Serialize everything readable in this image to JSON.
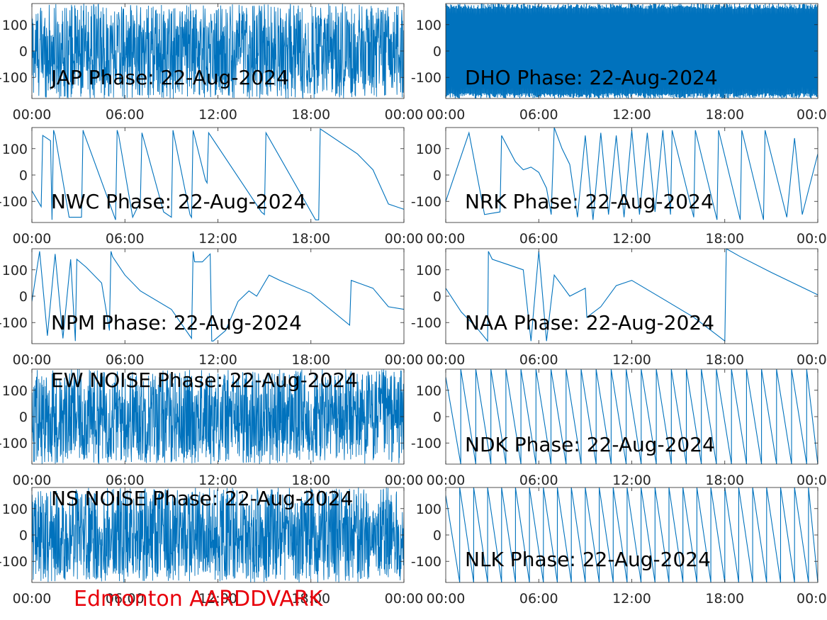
{
  "figure": {
    "footer_label": "Edmonton AARDDVARK",
    "footer_color": "#e8000b",
    "line_color": "#0072bd",
    "x_tick_labels": [
      "00:00",
      "06:00",
      "12:00",
      "18:00",
      "00:00"
    ],
    "y_tick_labels": [
      "100",
      "0",
      "-100"
    ]
  },
  "chart_data": [
    {
      "type": "line",
      "title": "JAP Phase: 22-Aug-2024",
      "pattern": "noise",
      "xlim": [
        0,
        24
      ],
      "ylim": [
        -180,
        180
      ],
      "yticks": [
        100,
        0,
        -100
      ],
      "xticks": [
        0,
        6,
        12,
        18,
        24
      ]
    },
    {
      "type": "line",
      "title": "DHO Phase: 22-Aug-2024",
      "pattern": "fast-wrap",
      "xlim": [
        0,
        24
      ],
      "ylim": [
        -180,
        180
      ],
      "yticks": [
        100,
        0,
        -100
      ],
      "xticks": [
        0,
        6,
        12,
        18,
        24
      ]
    },
    {
      "type": "line",
      "title": "NWC Phase: 22-Aug-2024",
      "pattern": "sawtooth",
      "xlim": [
        0,
        24
      ],
      "ylim": [
        -180,
        180
      ],
      "yticks": [
        100,
        0,
        -100
      ],
      "xticks": [
        0,
        6,
        12,
        18,
        24
      ],
      "x": [
        0,
        0.6,
        0.7,
        1.2,
        1.3,
        1.4,
        1.5,
        2.4,
        3.2,
        3.3,
        3.35,
        5.4,
        5.5,
        5.6,
        6.5,
        7,
        7.1,
        8.5,
        9,
        9.1,
        10.2,
        10.3,
        10.4,
        11.2,
        11.3,
        11.4,
        14.8,
        15,
        15.1,
        18.3,
        18.5,
        18.6,
        21,
        22,
        23,
        24
      ],
      "y": [
        -60,
        -120,
        150,
        130,
        -170,
        170,
        150,
        -160,
        -160,
        170,
        160,
        -170,
        170,
        150,
        -160,
        -100,
        160,
        -140,
        -160,
        170,
        -150,
        -160,
        170,
        -20,
        -30,
        160,
        -140,
        -150,
        160,
        -170,
        -170,
        175,
        80,
        20,
        -110,
        -130
      ]
    },
    {
      "type": "line",
      "title": "NRK Phase: 22-Aug-2024",
      "pattern": "mixed",
      "xlim": [
        0,
        24
      ],
      "ylim": [
        -180,
        180
      ],
      "yticks": [
        100,
        0,
        -100
      ],
      "xticks": [
        0,
        6,
        12,
        18,
        24
      ],
      "x": [
        0,
        1.5,
        2.5,
        3.5,
        3.6,
        4.5,
        5,
        5.5,
        6,
        6.5,
        6.8,
        7,
        7.5,
        8,
        8.5,
        9,
        9.5,
        10,
        10.5,
        11,
        11.5,
        12,
        12.5,
        13,
        13.5,
        14,
        14.5,
        14.6,
        16,
        16.1,
        17.5,
        17.6,
        19,
        19.1,
        20.5,
        20.6,
        22,
        22.5,
        23,
        24
      ],
      "y": [
        -100,
        160,
        -150,
        -140,
        150,
        50,
        20,
        30,
        10,
        -50,
        -150,
        180,
        100,
        40,
        -160,
        150,
        -170,
        160,
        -150,
        150,
        -160,
        170,
        -150,
        160,
        -140,
        170,
        -150,
        170,
        -160,
        170,
        -170,
        170,
        -170,
        170,
        -170,
        170,
        -160,
        140,
        -150,
        80
      ]
    },
    {
      "type": "line",
      "title": "NPM Phase: 22-Aug-2024",
      "pattern": "mixed",
      "xlim": [
        0,
        24
      ],
      "ylim": [
        -180,
        180
      ],
      "yticks": [
        100,
        0,
        -100
      ],
      "xticks": [
        0,
        6,
        12,
        18,
        24
      ],
      "x": [
        0,
        0.5,
        1,
        1.5,
        2,
        2.5,
        2.8,
        2.9,
        3.5,
        4.5,
        5,
        5.1,
        5.2,
        6,
        7,
        9,
        10.3,
        10.4,
        10.5,
        11,
        11.5,
        11.6,
        11.7,
        12.5,
        13.3,
        14,
        14.5,
        15.3,
        16,
        18,
        20.5,
        20.6,
        22,
        23,
        24
      ],
      "y": [
        -20,
        170,
        -150,
        160,
        -160,
        140,
        -170,
        140,
        110,
        50,
        -130,
        170,
        150,
        80,
        20,
        -50,
        -160,
        170,
        130,
        130,
        160,
        -170,
        -170,
        -130,
        -20,
        20,
        0,
        80,
        60,
        10,
        -110,
        60,
        30,
        -40,
        -50
      ]
    },
    {
      "type": "line",
      "title": "NAA Phase: 22-Aug-2024",
      "pattern": "mixed",
      "xlim": [
        0,
        24
      ],
      "ylim": [
        -180,
        180
      ],
      "yticks": [
        100,
        0,
        -100
      ],
      "xticks": [
        0,
        6,
        12,
        18,
        24
      ],
      "x": [
        0,
        1,
        2,
        2.7,
        2.75,
        3,
        4,
        5,
        5.5,
        6,
        6.5,
        7,
        7.5,
        8,
        9,
        9.1,
        10,
        11,
        12,
        14,
        16,
        18,
        18.1,
        19,
        21,
        24
      ],
      "y": [
        30,
        -60,
        -120,
        -170,
        170,
        140,
        120,
        100,
        -170,
        170,
        -170,
        80,
        40,
        0,
        30,
        -80,
        -40,
        40,
        60,
        -10,
        -80,
        -170,
        180,
        150,
        90,
        5
      ]
    },
    {
      "type": "line",
      "title": "EW NOISE Phase: 22-Aug-2024",
      "pattern": "noise",
      "xlim": [
        0,
        24
      ],
      "ylim": [
        -180,
        180
      ],
      "yticks": [
        100,
        0,
        -100
      ],
      "xticks": [
        0,
        6,
        12,
        18,
        24
      ]
    },
    {
      "type": "line",
      "title": "NDK Phase: 22-Aug-2024",
      "pattern": "periodic-sawtooth",
      "period_hours": 0.97,
      "xlim": [
        0,
        24
      ],
      "ylim": [
        -180,
        180
      ],
      "yticks": [
        100,
        0,
        -100
      ],
      "xticks": [
        0,
        6,
        12,
        18,
        24
      ]
    },
    {
      "type": "line",
      "title": "NS NOISE Phase: 22-Aug-2024",
      "pattern": "noise",
      "xlim": [
        0,
        24
      ],
      "ylim": [
        -180,
        180
      ],
      "yticks": [
        100,
        0,
        -100
      ],
      "xticks": [
        0,
        6,
        12,
        18,
        24
      ]
    },
    {
      "type": "line",
      "title": "NLK Phase: 22-Aug-2024",
      "pattern": "periodic-sawtooth",
      "period_hours": 0.9,
      "xlim": [
        0,
        24
      ],
      "ylim": [
        -180,
        180
      ],
      "yticks": [
        100,
        0,
        -100
      ],
      "xticks": [
        0,
        6,
        12,
        18,
        24
      ]
    }
  ]
}
